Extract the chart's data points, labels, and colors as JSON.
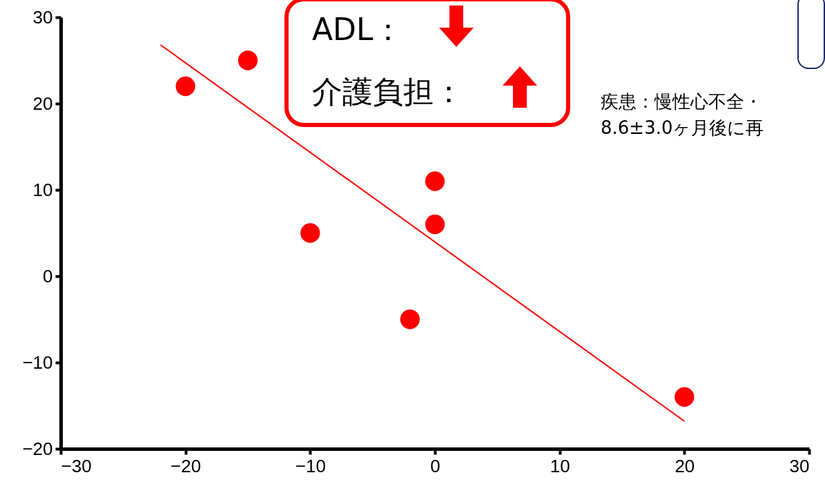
{
  "chart_data": {
    "type": "scatter",
    "grid": false,
    "xlim": [
      -30,
      30
    ],
    "xticks": [
      -30,
      -20,
      -10,
      0,
      10,
      20,
      30
    ],
    "ylim": [
      -20,
      30
    ],
    "yticks": [
      -20,
      -10,
      0,
      10,
      20,
      30
    ],
    "annotations": [
      "ADL：",
      "介護負担：",
      "疾患：慢性心不全・",
      "8.6±3.0ヶ月後に再"
    ],
    "series": [
      {
        "marker": "circle",
        "color": "#ff0000",
        "x": [
          -20,
          -15,
          -10,
          -2,
          0,
          0,
          20
        ],
        "values": [
          22,
          25,
          5,
          -5,
          11,
          6,
          -14
        ]
      },
      {
        "type": "line",
        "color": "#ff0000",
        "x": [
          -22,
          20
        ],
        "values": [
          26.8,
          -16.8
        ]
      }
    ]
  }
}
